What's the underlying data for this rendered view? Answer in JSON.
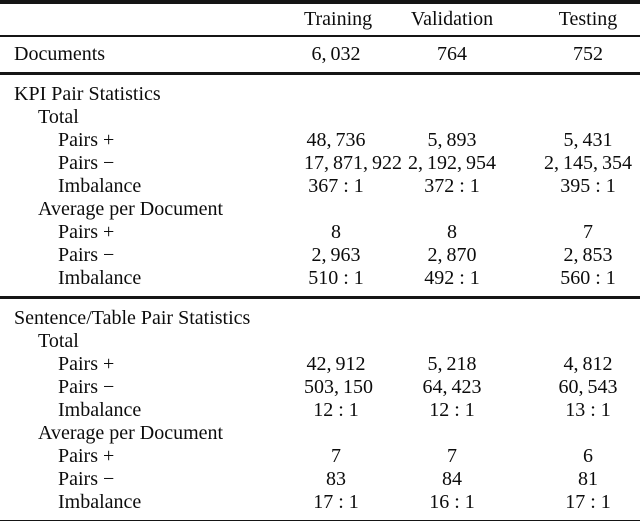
{
  "table": {
    "columns": [
      "Training",
      "Validation",
      "Testing"
    ],
    "documents": {
      "label": "Documents",
      "values": [
        "6, 032",
        "764",
        "752"
      ]
    },
    "sections": [
      {
        "rows": [
          {
            "label": "KPI Pair Statistics",
            "values": [
              "",
              "",
              ""
            ]
          },
          {
            "label": "Total",
            "values": [
              "",
              "",
              ""
            ]
          },
          {
            "label": "Pairs +",
            "values": [
              "48, 736",
              "5, 893",
              "5, 431"
            ]
          },
          {
            "label": "Pairs −",
            "values": [
              "17, 871, 922",
              "2, 192, 954",
              "2, 145, 354"
            ]
          },
          {
            "label": "Imbalance",
            "values": [
              "367 : 1",
              "372 : 1",
              "395 : 1"
            ]
          },
          {
            "label": "Average per Document",
            "values": [
              "",
              "",
              ""
            ]
          },
          {
            "label": "Pairs +",
            "values": [
              "8",
              "8",
              "7"
            ]
          },
          {
            "label": "Pairs −",
            "values": [
              "2, 963",
              "2, 870",
              "2, 853"
            ]
          },
          {
            "label": "Imbalance",
            "values": [
              "510 : 1",
              "492 : 1",
              "560 : 1"
            ]
          }
        ]
      },
      {
        "rows": [
          {
            "label": "Sentence/Table Pair Statistics",
            "values": [
              "",
              "",
              ""
            ]
          },
          {
            "label": "Total",
            "values": [
              "",
              "",
              ""
            ]
          },
          {
            "label": "Pairs +",
            "values": [
              "42, 912",
              "5, 218",
              "4, 812"
            ]
          },
          {
            "label": "Pairs −",
            "values": [
              "503, 150",
              "64, 423",
              "60, 543"
            ]
          },
          {
            "label": "Imbalance",
            "values": [
              "12 : 1",
              "12 : 1",
              "13 : 1"
            ]
          },
          {
            "label": "Average per Document",
            "values": [
              "",
              "",
              ""
            ]
          },
          {
            "label": "Pairs +",
            "values": [
              "7",
              "7",
              "6"
            ]
          },
          {
            "label": "Pairs −",
            "values": [
              "83",
              "84",
              "81"
            ]
          },
          {
            "label": "Imbalance",
            "values": [
              "17 : 1",
              "16 : 1",
              "17 : 1"
            ]
          }
        ]
      }
    ]
  }
}
